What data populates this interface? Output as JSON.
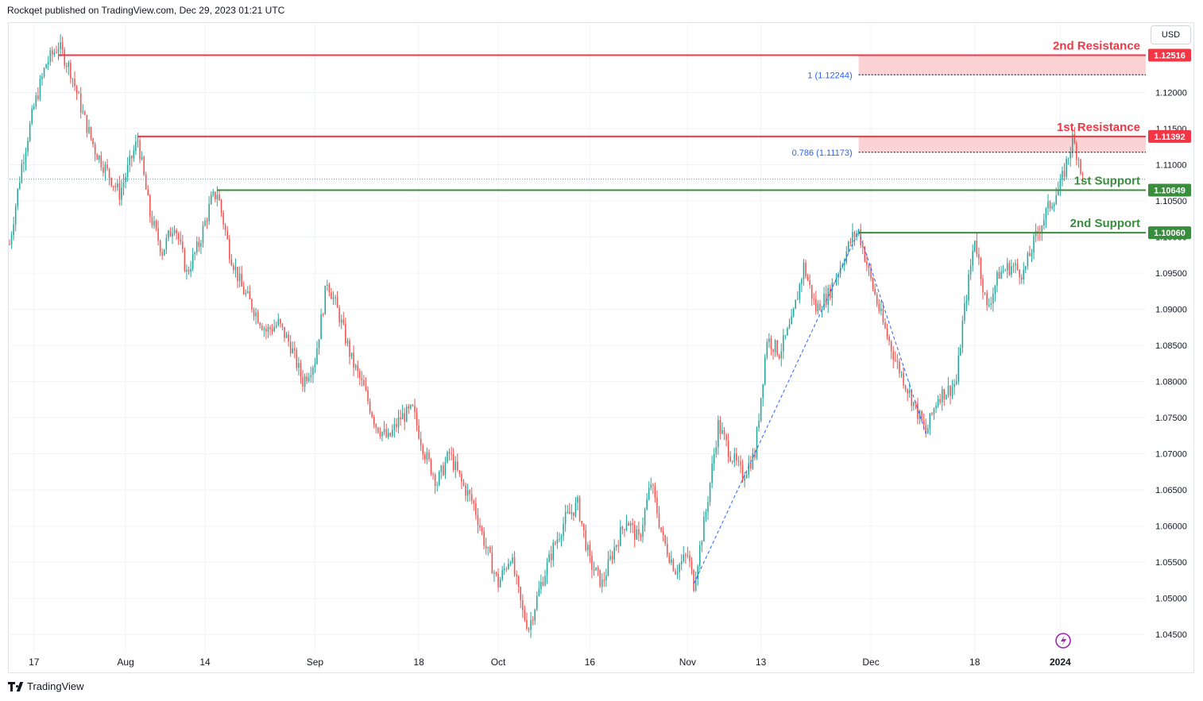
{
  "header": {
    "published_text": "Rockqet published on TradingView.com, Dec 29, 2023 01:21 UTC"
  },
  "toolbar": {
    "currency": "USD"
  },
  "footer": {
    "brand": "TradingView",
    "logo_icon": "tradingview-logo-icon"
  },
  "colors": {
    "up": "#26a69a",
    "down": "#ef5350",
    "resistance": "#f23645",
    "support": "#388e3c",
    "zone": "#fccbcd",
    "fib": "#2962ff",
    "grid": "#f0f3fa",
    "axis_text": "#131722"
  },
  "chart_data": {
    "type": "candlestick",
    "symbol_currency": "USD",
    "ylim": [
      1.0425,
      1.1295
    ],
    "y_ticks": [
      "1.04500",
      "1.05000",
      "1.05500",
      "1.06000",
      "1.06500",
      "1.07000",
      "1.07500",
      "1.08000",
      "1.08500",
      "1.09000",
      "1.09500",
      "1.10000",
      "1.10500",
      "1.11000",
      "1.11500",
      "1.12000"
    ],
    "x_ticks": [
      {
        "label": "17",
        "day": 0
      },
      {
        "label": "Aug",
        "day": 15
      },
      {
        "label": "14",
        "day": 28
      },
      {
        "label": "Sep",
        "day": 46
      },
      {
        "label": "18",
        "day": 63
      },
      {
        "label": "Oct",
        "day": 76
      },
      {
        "label": "16",
        "day": 91
      },
      {
        "label": "Nov",
        "day": 107
      },
      {
        "label": "13",
        "day": 119
      },
      {
        "label": "Dec",
        "day": 137
      },
      {
        "label": "18",
        "day": 154
      },
      {
        "label": "2024",
        "day": 168
      }
    ],
    "x_range_days": [
      -4,
      182
    ],
    "price_path": [
      [
        -4,
        1.099
      ],
      [
        -2,
        1.11
      ],
      [
        0,
        1.118
      ],
      [
        2,
        1.124
      ],
      [
        4,
        1.1265
      ],
      [
        6,
        1.123
      ],
      [
        8,
        1.117
      ],
      [
        10,
        1.112
      ],
      [
        12,
        1.109
      ],
      [
        14,
        1.106
      ],
      [
        16,
        1.111
      ],
      [
        17,
        1.1135
      ],
      [
        19,
        1.103
      ],
      [
        21,
        1.098
      ],
      [
        23,
        1.102
      ],
      [
        25,
        1.095
      ],
      [
        27,
        1.099
      ],
      [
        29,
        1.105
      ],
      [
        30,
        1.1062
      ],
      [
        32,
        1.098
      ],
      [
        34,
        1.093
      ],
      [
        36,
        1.09
      ],
      [
        38,
        1.087
      ],
      [
        40,
        1.088
      ],
      [
        42,
        1.085
      ],
      [
        44,
        1.08
      ],
      [
        46,
        1.083
      ],
      [
        48,
        1.094
      ],
      [
        50,
        1.089
      ],
      [
        52,
        1.083
      ],
      [
        54,
        1.079
      ],
      [
        56,
        1.074
      ],
      [
        58,
        1.072
      ],
      [
        60,
        1.075
      ],
      [
        62,
        1.076
      ],
      [
        64,
        1.07
      ],
      [
        66,
        1.066
      ],
      [
        68,
        1.07
      ],
      [
        70,
        1.066
      ],
      [
        72,
        1.063
      ],
      [
        74,
        1.057
      ],
      [
        76,
        1.052
      ],
      [
        78,
        1.056
      ],
      [
        80,
        1.048
      ],
      [
        81,
        1.046
      ],
      [
        83,
        1.052
      ],
      [
        85,
        1.057
      ],
      [
        87,
        1.061
      ],
      [
        89,
        1.063
      ],
      [
        91,
        1.055
      ],
      [
        93,
        1.052
      ],
      [
        95,
        1.057
      ],
      [
        97,
        1.061
      ],
      [
        99,
        1.058
      ],
      [
        101,
        1.066
      ],
      [
        103,
        1.058
      ],
      [
        105,
        1.054
      ],
      [
        107,
        1.056
      ],
      [
        108,
        1.052
      ],
      [
        110,
        1.062
      ],
      [
        112,
        1.074
      ],
      [
        114,
        1.07
      ],
      [
        116,
        1.067
      ],
      [
        118,
        1.07
      ],
      [
        120,
        1.086
      ],
      [
        122,
        1.084
      ],
      [
        124,
        1.088
      ],
      [
        126,
        1.096
      ],
      [
        128,
        1.09
      ],
      [
        130,
        1.092
      ],
      [
        132,
        1.096
      ],
      [
        134,
        1.1
      ],
      [
        135,
        1.1008
      ],
      [
        137,
        1.094
      ],
      [
        139,
        1.088
      ],
      [
        141,
        1.083
      ],
      [
        143,
        1.079
      ],
      [
        145,
        1.075
      ],
      [
        146,
        1.0728
      ],
      [
        148,
        1.078
      ],
      [
        150,
        1.079
      ],
      [
        151,
        1.08
      ],
      [
        152,
        1.088
      ],
      [
        154,
        1.1
      ],
      [
        156,
        1.09
      ],
      [
        158,
        1.095
      ],
      [
        160,
        1.096
      ],
      [
        162,
        1.095
      ],
      [
        164,
        1.1
      ],
      [
        166,
        1.104
      ],
      [
        168,
        1.107
      ],
      [
        170,
        1.1135
      ],
      [
        171,
        1.111
      ],
      [
        172,
        1.1065
      ]
    ],
    "levels": [
      {
        "name": "2nd Resistance",
        "value": 1.12516,
        "label": "1.12516",
        "kind": "resistance",
        "start_day": 4
      },
      {
        "name": "1st Resistance",
        "value": 1.11392,
        "label": "1.11392",
        "kind": "resistance",
        "start_day": 17
      },
      {
        "name": "1st Support",
        "value": 1.10649,
        "label": "1.10649",
        "kind": "support",
        "start_day": 30
      },
      {
        "name": "2nd Support",
        "value": 1.1006,
        "label": "1.10060",
        "kind": "support",
        "start_day": 135
      }
    ],
    "fib_levels": [
      {
        "label": "1 (1.12244)",
        "value": 1.12244
      },
      {
        "label": "0.786 (1.11173)",
        "value": 1.11173
      }
    ],
    "zones": [
      {
        "from": 1.12244,
        "to": 1.12516,
        "start_day": 135
      },
      {
        "from": 1.11173,
        "to": 1.11392,
        "start_day": 135
      }
    ],
    "zigzag": [
      [
        108,
        1.052
      ],
      [
        135,
        1.1008
      ],
      [
        146,
        1.0728
      ]
    ],
    "last_price": 1.108
  }
}
